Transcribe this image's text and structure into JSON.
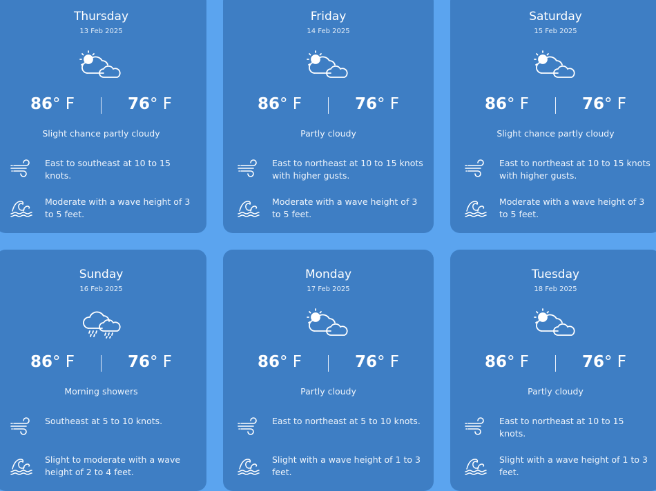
{
  "unit": "° F",
  "colors": {
    "background": "#5ba4ef",
    "card": "#3e7ec4",
    "text": "#ffffff"
  },
  "days": [
    {
      "day": "Thursday",
      "date": "13 Feb 2025",
      "icon": "partly-cloudy-icon",
      "high": "86",
      "low": "76",
      "description": "Slight chance partly cloudy",
      "wind": "East to southeast at 10 to 15 knots.",
      "waves": "Moderate with a wave height of 3 to 5 feet."
    },
    {
      "day": "Friday",
      "date": "14 Feb 2025",
      "icon": "partly-cloudy-icon",
      "high": "86",
      "low": "76",
      "description": "Partly cloudy",
      "wind": "East to northeast at 10 to 15 knots with higher gusts.",
      "waves": "Moderate with a wave height of 3 to 5 feet."
    },
    {
      "day": "Saturday",
      "date": "15 Feb 2025",
      "icon": "partly-cloudy-icon",
      "high": "86",
      "low": "76",
      "description": "Slight chance partly cloudy",
      "wind": "East to northeast at 10 to 15 knots with higher gusts.",
      "waves": "Moderate with a wave height of 3 to 5 feet."
    },
    {
      "day": "Sunday",
      "date": "16 Feb 2025",
      "icon": "rain-cloud-icon",
      "high": "86",
      "low": "76",
      "description": "Morning showers",
      "wind": "Southeast at 5 to 10 knots.",
      "waves": "Slight to moderate with a wave height of 2 to 4 feet."
    },
    {
      "day": "Monday",
      "date": "17 Feb 2025",
      "icon": "partly-cloudy-icon",
      "high": "86",
      "low": "76",
      "description": "Partly cloudy",
      "wind": "East to northeast at 5 to 10 knots.",
      "waves": "Slight with a wave height of 1 to 3 feet."
    },
    {
      "day": "Tuesday",
      "date": "18 Feb 2025",
      "icon": "partly-cloudy-icon",
      "high": "86",
      "low": "76",
      "description": "Partly cloudy",
      "wind": "East to northeast at 10 to 15 knots.",
      "waves": "Slight with a wave height of 1 to 3 feet."
    }
  ]
}
